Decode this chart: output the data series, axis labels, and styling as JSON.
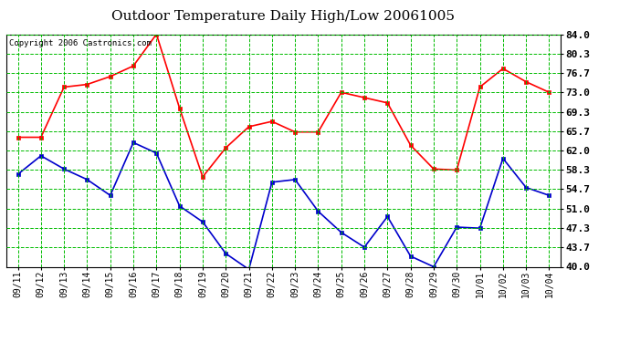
{
  "title": "Outdoor Temperature Daily High/Low 20061005",
  "copyright": "Copyright 2006 Castronics.com",
  "dates": [
    "09/11",
    "09/12",
    "09/13",
    "09/14",
    "09/15",
    "09/16",
    "09/17",
    "09/18",
    "09/19",
    "09/20",
    "09/21",
    "09/22",
    "09/23",
    "09/24",
    "09/25",
    "09/26",
    "09/27",
    "09/28",
    "09/29",
    "09/30",
    "10/01",
    "10/02",
    "10/03",
    "10/04"
  ],
  "high_temps": [
    64.5,
    64.5,
    74.0,
    74.5,
    76.0,
    78.0,
    84.0,
    70.0,
    57.0,
    62.5,
    66.5,
    67.5,
    65.5,
    65.5,
    73.0,
    72.0,
    71.0,
    63.0,
    58.5,
    58.3,
    74.0,
    77.5,
    75.0,
    73.0
  ],
  "low_temps": [
    57.5,
    61.0,
    58.5,
    56.5,
    53.5,
    63.5,
    61.5,
    51.5,
    48.5,
    42.5,
    39.5,
    56.0,
    56.5,
    50.5,
    46.5,
    43.7,
    49.5,
    42.0,
    40.0,
    47.5,
    47.3,
    60.5,
    55.0,
    53.5
  ],
  "high_color": "#ff0000",
  "low_color": "#0000cc",
  "bg_color": "#ffffff",
  "grid_color": "#00bb00",
  "ylim": [
    40.0,
    84.0
  ],
  "yticks": [
    40.0,
    43.7,
    47.3,
    51.0,
    54.7,
    58.3,
    62.0,
    65.7,
    69.3,
    73.0,
    76.7,
    80.3,
    84.0
  ],
  "ytick_labels": [
    "40.0",
    "43.7",
    "47.3",
    "51.0",
    "54.7",
    "58.3",
    "62.0",
    "65.7",
    "69.3",
    "73.0",
    "76.7",
    "80.3",
    "84.0"
  ],
  "marker": "s",
  "markersize": 3,
  "linewidth": 1.2
}
